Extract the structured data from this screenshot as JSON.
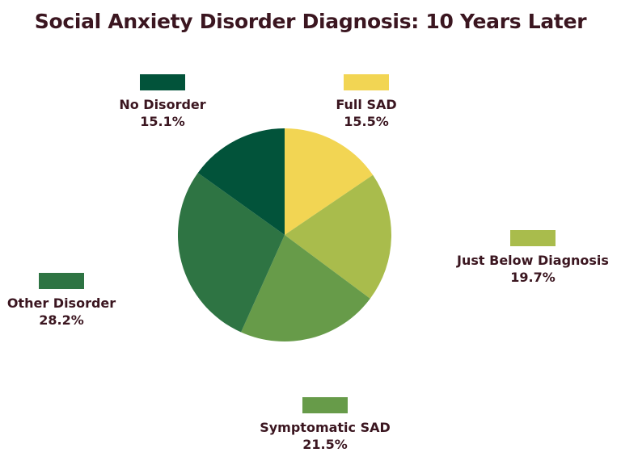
{
  "chart_data": {
    "type": "pie",
    "title": "Social Anxiety Disorder Diagnosis: 10 Years Later",
    "slices": [
      {
        "label": "Full SAD",
        "value": 15.5,
        "display": "15.5%",
        "color": "#f2d553"
      },
      {
        "label": "Just Below Diagnosis",
        "value": 19.7,
        "display": "19.7%",
        "color": "#a9bc4c"
      },
      {
        "label": "Symptomatic SAD",
        "value": 21.5,
        "display": "21.5%",
        "color": "#679b49"
      },
      {
        "label": "Other Disorder",
        "value": 28.2,
        "display": "28.2%",
        "color": "#2e7443"
      },
      {
        "label": "No Disorder",
        "value": 15.1,
        "display": "15.1%",
        "color": "#02533a"
      }
    ],
    "start_angle_deg": 0,
    "direction": "clockwise"
  }
}
